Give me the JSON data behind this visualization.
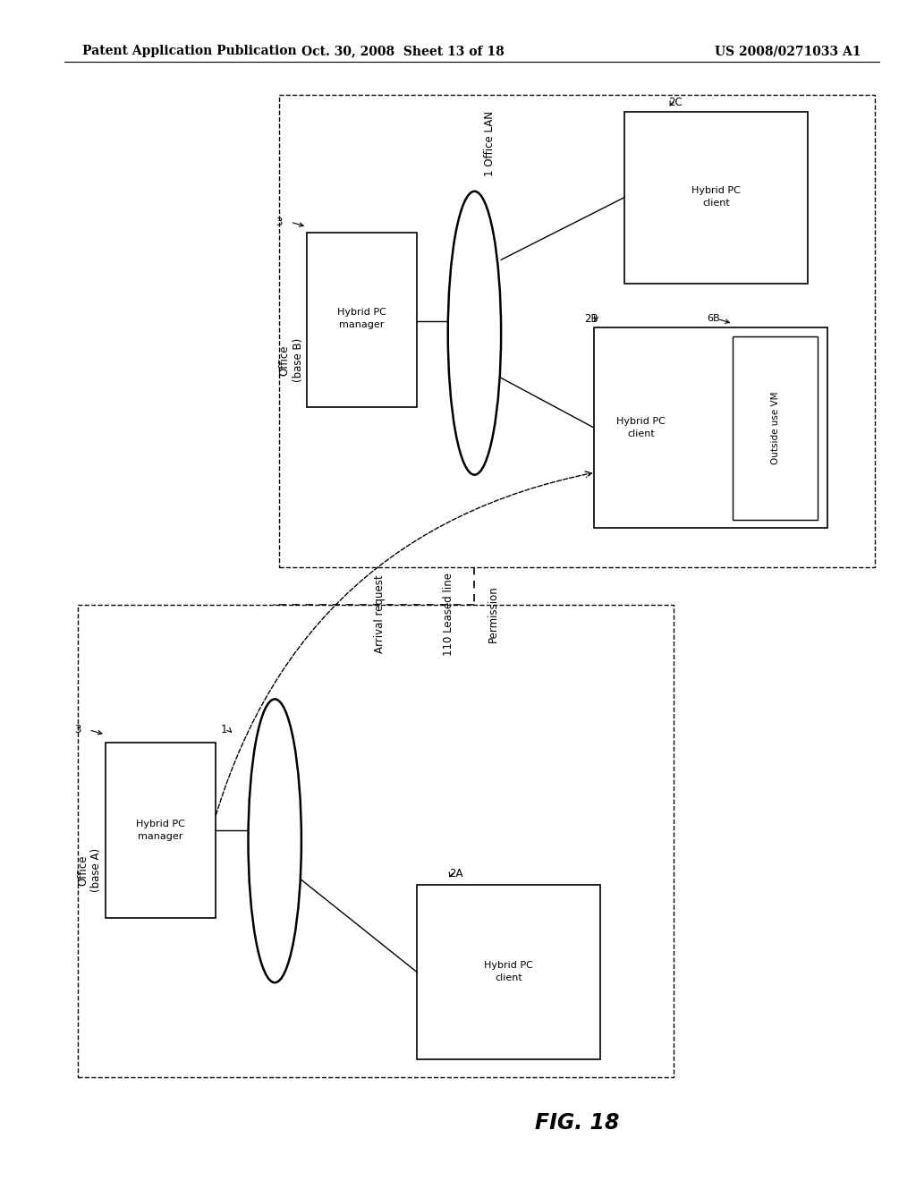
{
  "bg_color": "#ffffff",
  "header_left": "Patent Application Publication",
  "header_mid": "Oct. 30, 2008  Sheet 13 of 18",
  "header_right": "US 2008/0271033 A1",
  "figure_label": "FIG. 18"
}
